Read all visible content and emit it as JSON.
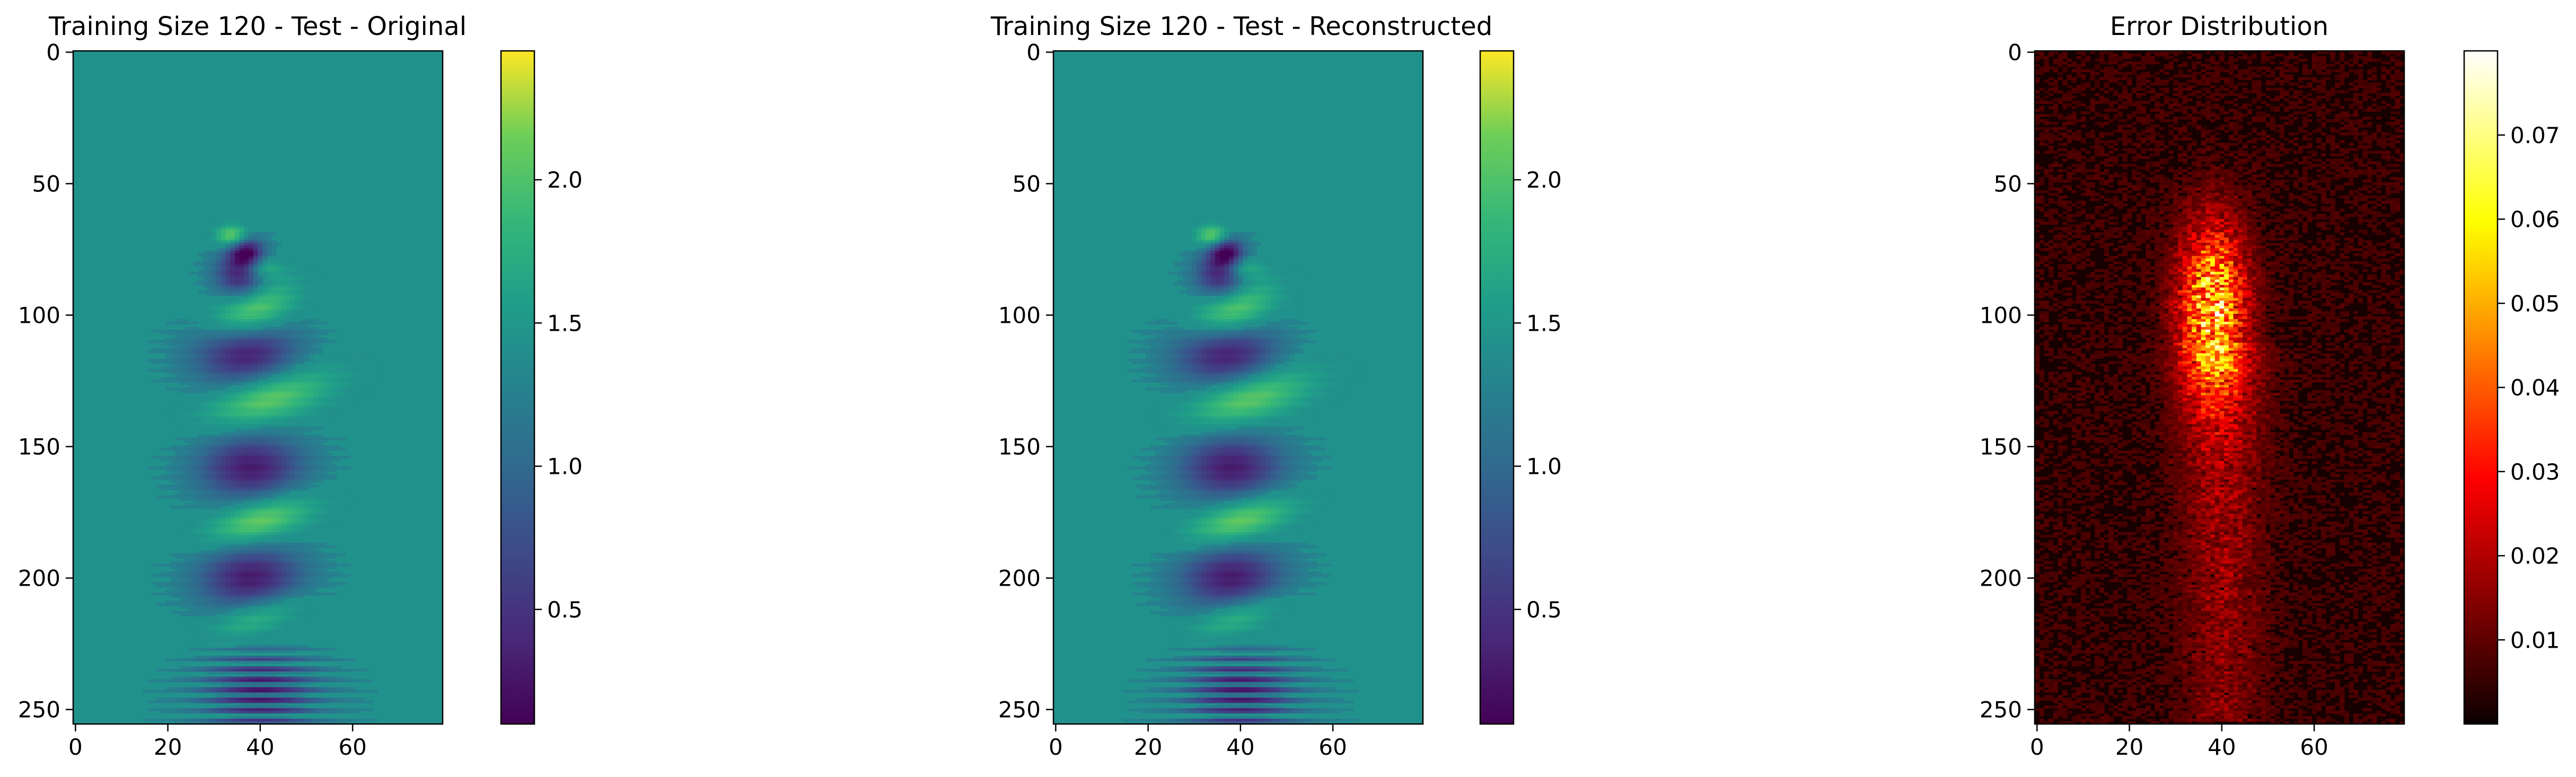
{
  "chart_data": [
    {
      "type": "heatmap",
      "title": "Training Size 120 - Test - Original",
      "xlim": [
        -0.5,
        79.5
      ],
      "ylim": [
        255.5,
        -0.5
      ],
      "xticks": [
        0,
        20,
        40,
        60
      ],
      "yticks": [
        0,
        50,
        100,
        150,
        200,
        250
      ],
      "colormap": "viridis",
      "colorbar": {
        "range": [
          0.1,
          2.45
        ],
        "ticks": [
          0.5,
          1.0,
          1.5,
          2.0
        ],
        "tick_labels": [
          "0.5",
          "1.0",
          "1.5",
          "2.0"
        ]
      },
      "background_value": 1.35,
      "features": [
        {
          "row_range": [
            65,
            90
          ],
          "col_center": 37,
          "value_range": [
            0.1,
            2.4
          ],
          "description": "wake origin"
        },
        {
          "row": 85,
          "col_center": 37,
          "value": 0.3
        },
        {
          "row": 98,
          "col_center": 38,
          "value": 2.3
        },
        {
          "row": 115,
          "col_center": 37,
          "value": 0.3
        },
        {
          "row": 130,
          "col_center": 42,
          "value": 2.2
        },
        {
          "row": 158,
          "col_center": 38,
          "value": 0.3
        },
        {
          "row": 178,
          "col_center": 40,
          "value": 2.2
        },
        {
          "row": 200,
          "col_center": 38,
          "value": 0.3
        },
        {
          "row": 215,
          "col_center": 40,
          "value": 2.0
        },
        {
          "row_range": [
            225,
            255
          ],
          "col_center": 40,
          "value_range": [
            0.3,
            2.3
          ],
          "description": "banded region"
        }
      ]
    },
    {
      "type": "heatmap",
      "title": "Training Size 120 - Test - Reconstructed",
      "xlim": [
        -0.5,
        79.5
      ],
      "ylim": [
        255.5,
        -0.5
      ],
      "xticks": [
        0,
        20,
        40,
        60
      ],
      "yticks": [
        0,
        50,
        100,
        150,
        200,
        250
      ],
      "colormap": "viridis",
      "colorbar": {
        "range": [
          0.1,
          2.45
        ],
        "ticks": [
          0.5,
          1.0,
          1.5,
          2.0
        ],
        "tick_labels": [
          "0.5",
          "1.0",
          "1.5",
          "2.0"
        ]
      },
      "background_value": 1.35,
      "features": [
        {
          "row_range": [
            65,
            90
          ],
          "col_center": 37,
          "value_range": [
            0.1,
            2.4
          ],
          "description": "wake origin"
        },
        {
          "row": 85,
          "col_center": 37,
          "value": 0.3
        },
        {
          "row": 98,
          "col_center": 38,
          "value": 2.3
        },
        {
          "row": 115,
          "col_center": 37,
          "value": 0.3
        },
        {
          "row": 130,
          "col_center": 42,
          "value": 2.2
        },
        {
          "row": 158,
          "col_center": 38,
          "value": 0.3
        },
        {
          "row": 178,
          "col_center": 40,
          "value": 2.2
        },
        {
          "row": 200,
          "col_center": 38,
          "value": 0.3
        },
        {
          "row": 215,
          "col_center": 40,
          "value": 2.0
        },
        {
          "row_range": [
            225,
            255
          ],
          "col_center": 40,
          "value_range": [
            0.3,
            2.3
          ],
          "description": "banded region"
        }
      ]
    },
    {
      "type": "heatmap",
      "title": "Error Distribution",
      "xlim": [
        -0.5,
        79.5
      ],
      "ylim": [
        255.5,
        -0.5
      ],
      "xticks": [
        0,
        20,
        40,
        60
      ],
      "yticks": [
        0,
        50,
        100,
        150,
        200,
        250
      ],
      "colormap": "hot",
      "colorbar": {
        "range": [
          0.0,
          0.08
        ],
        "ticks": [
          0.01,
          0.02,
          0.03,
          0.04,
          0.05,
          0.06,
          0.07
        ],
        "tick_labels": [
          "0.01",
          "0.02",
          "0.03",
          "0.04",
          "0.05",
          "0.06",
          "0.07"
        ]
      },
      "background_value": 0.003,
      "features": [
        {
          "row_range": [
            70,
            120
          ],
          "col_center": 38,
          "value_range": [
            0.02,
            0.08
          ],
          "description": "peak error cluster"
        },
        {
          "row_range": [
            120,
            250
          ],
          "col_center": 40,
          "value_range": [
            0.005,
            0.03
          ],
          "description": "moderate error trail"
        }
      ]
    }
  ]
}
